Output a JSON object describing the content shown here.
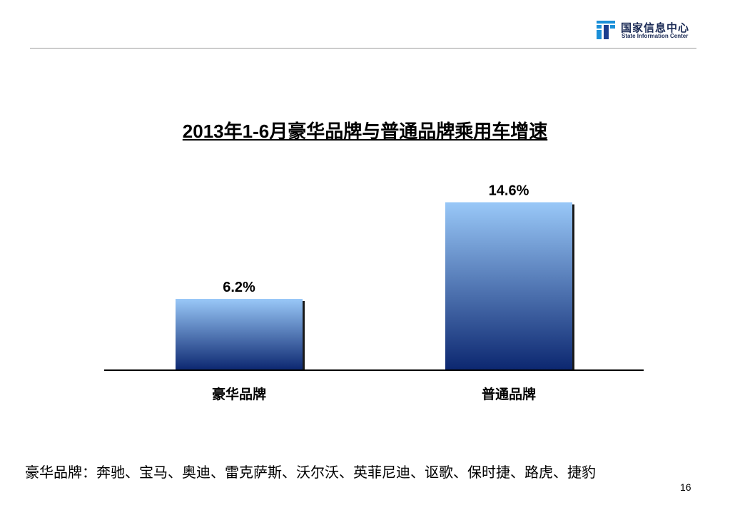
{
  "logo": {
    "name_cn": "国家信息中心",
    "name_en": "State Information Center"
  },
  "chart_data": {
    "type": "bar",
    "title": "2013年1-6月豪华品牌与普通品牌乘用车增速",
    "categories": [
      "豪华品牌",
      "普通品牌"
    ],
    "values": [
      6.2,
      14.6
    ],
    "data_labels": [
      "6.2%",
      "14.6%"
    ],
    "unit": "%",
    "ylim": [
      0,
      17.3
    ],
    "grid": false,
    "legend": "none",
    "colors": {
      "bar_top": "#99c8f8",
      "bar_bottom": "#0c2770",
      "shadow": "#1a1a1a",
      "axis": "#000000"
    }
  },
  "footnote": "豪华品牌：奔驰、宝马、奥迪、雷克萨斯、沃尔沃、英菲尼迪、讴歌、保时捷、路虎、捷豹",
  "page_number": "16"
}
